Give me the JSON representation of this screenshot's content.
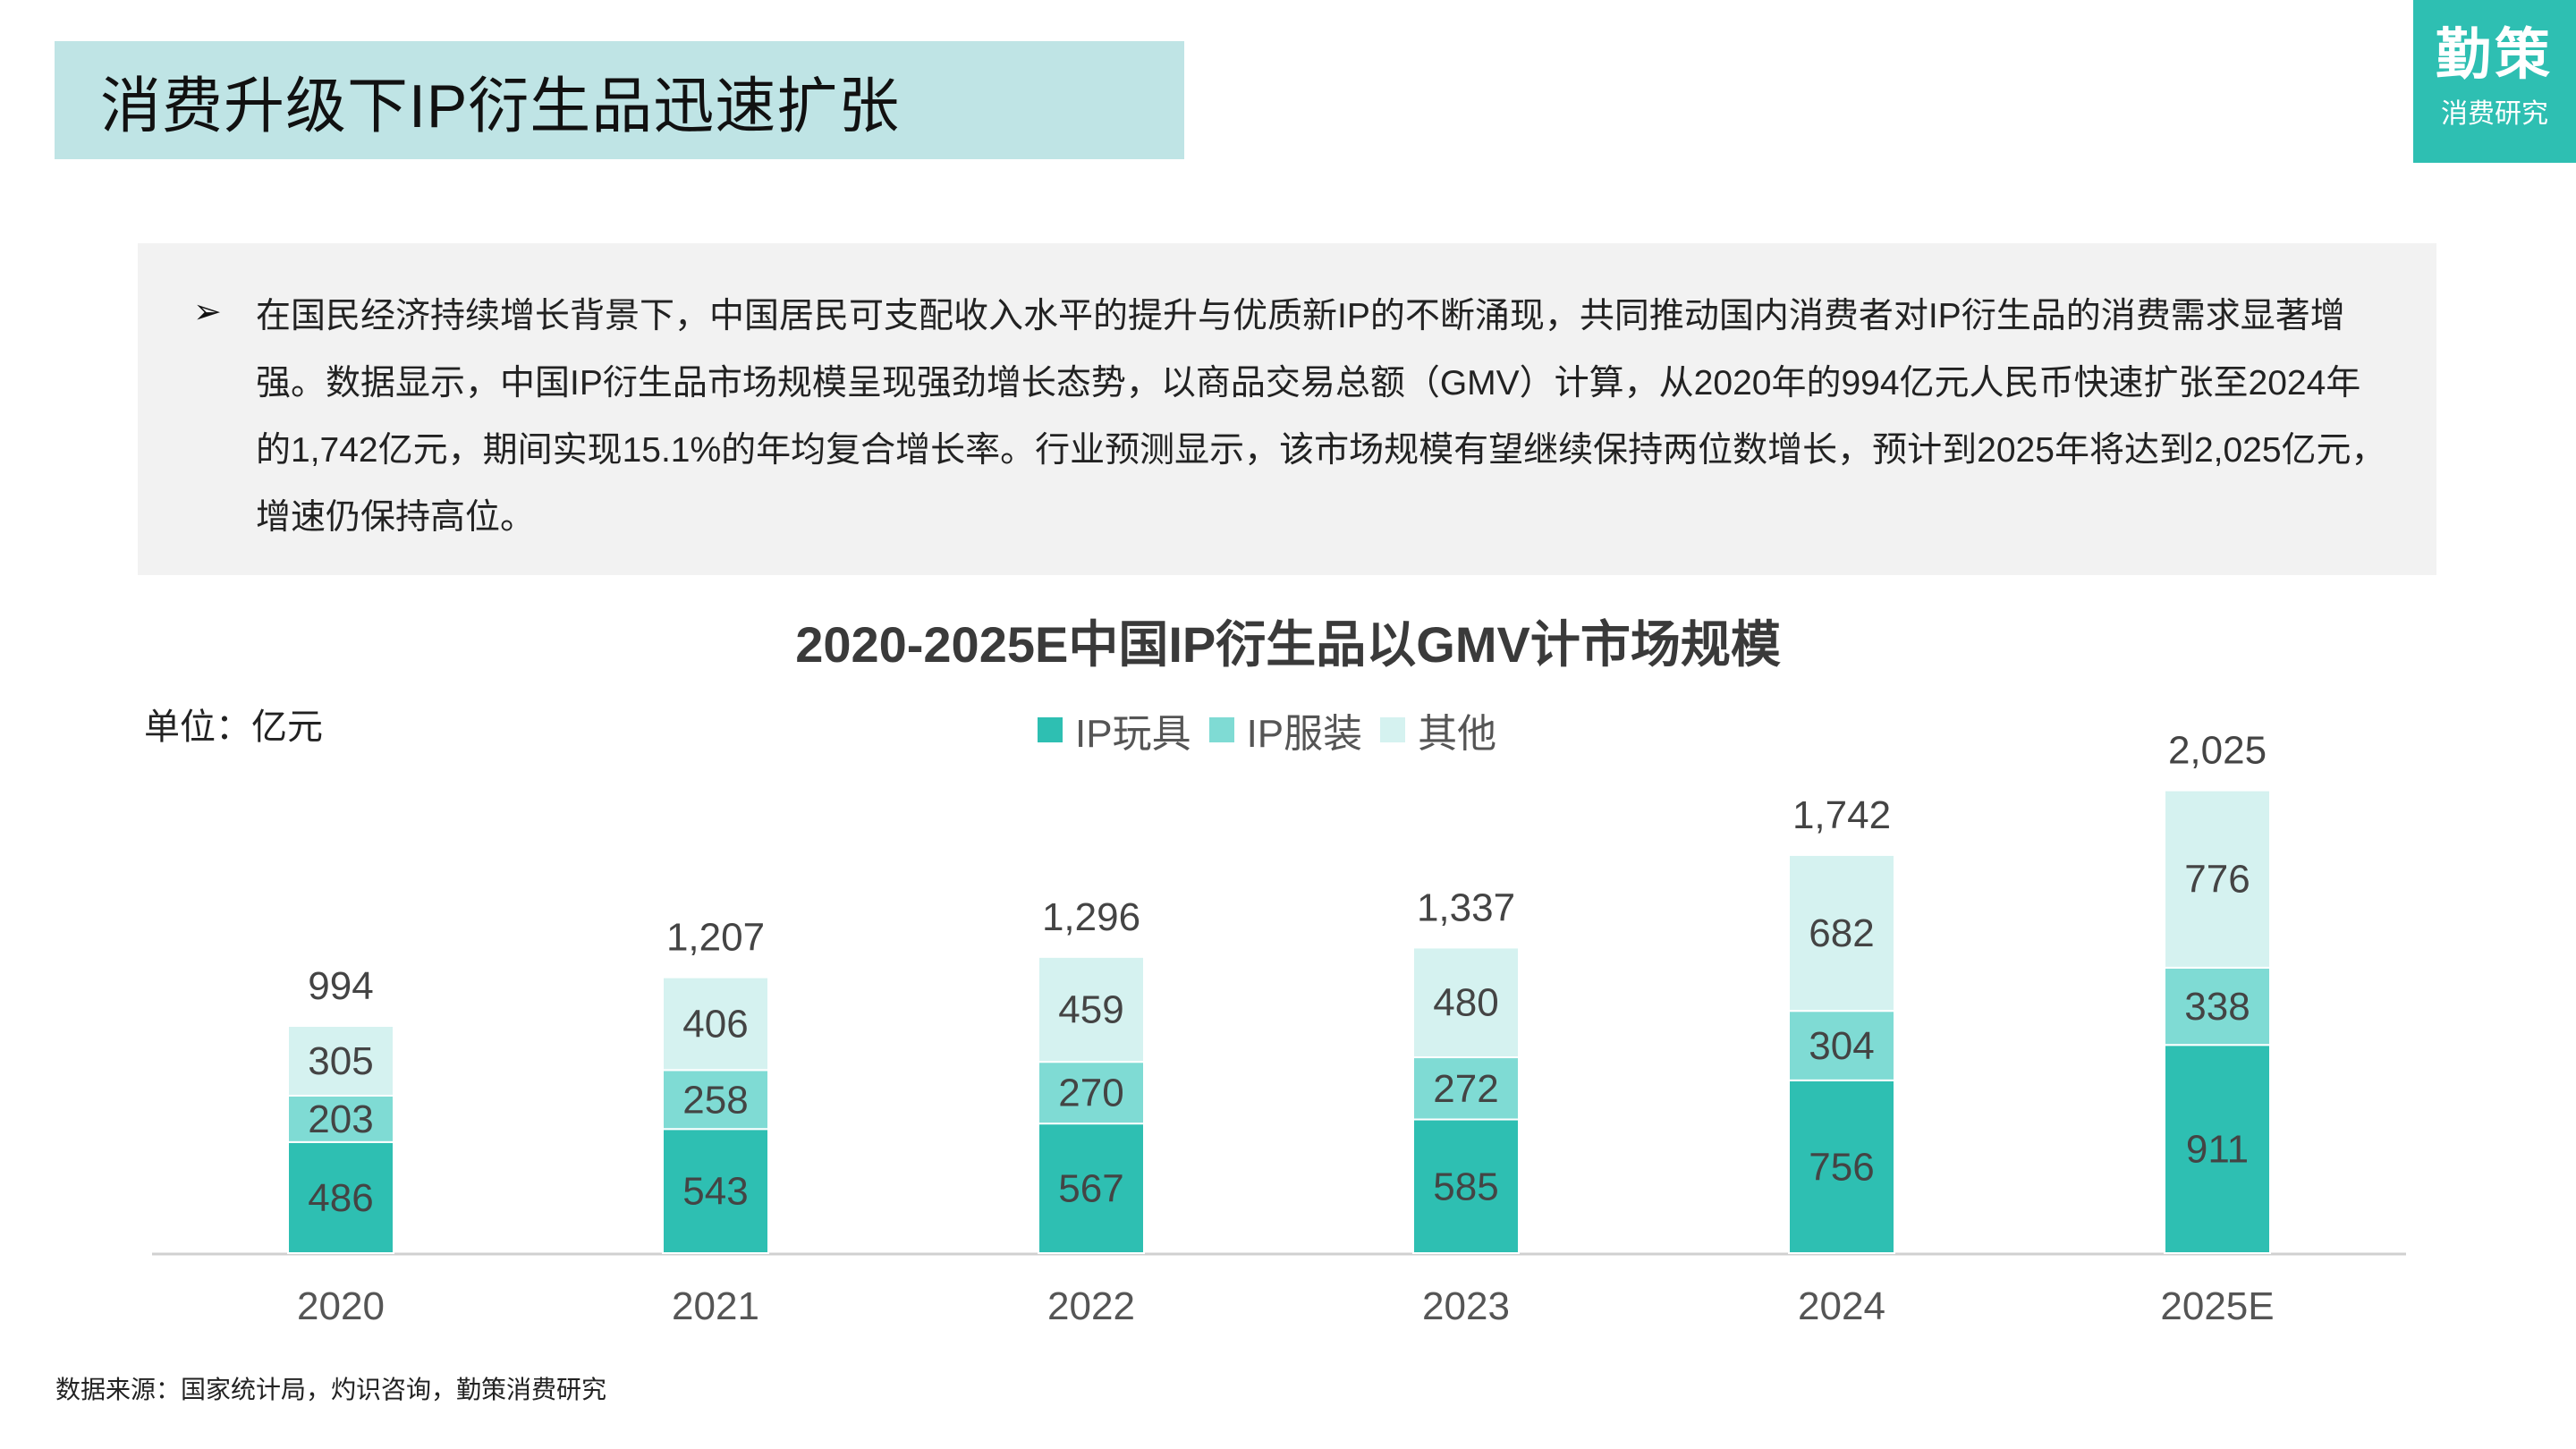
{
  "header": {
    "title": "消费升级下IP衍生品迅速扩张"
  },
  "logo": {
    "main": "勤策",
    "sub": "消费研究"
  },
  "summary": {
    "bullet": "➢",
    "text": "在国民经济持续增长背景下，中国居民可支配收入水平的提升与优质新IP的不断涌现，共同推动国内消费者对IP衍生品的消费需求显著增强。数据显示，中国IP衍生品市场规模呈现强劲增长态势，以商品交易总额（GMV）计算，从2020年的994亿元人民币快速扩张至2024年的1,742亿元，期间实现15.1%的年均复合增长率。行业预测显示，该市场规模有望继续保持两位数增长，预计到2025年将达到2,025亿元，增速仍保持高位。"
  },
  "unit_label": "单位：亿元",
  "source": "数据来源：国家统计局，灼识咨询，勤策消费研究",
  "chart_data": {
    "type": "bar",
    "stacked": true,
    "title": "2020-2025E中国IP衍生品以GMV计市场规模",
    "categories": [
      "2020",
      "2021",
      "2022",
      "2023",
      "2024",
      "2025E"
    ],
    "series": [
      {
        "name": "IP玩具",
        "color": "#2ebfb2",
        "values": [
          486,
          543,
          567,
          585,
          756,
          911
        ],
        "labels": [
          "486",
          "543",
          "567",
          "585",
          "756",
          "911"
        ]
      },
      {
        "name": "IP服装",
        "color": "#7fdbd4",
        "values": [
          203,
          258,
          270,
          272,
          304,
          338
        ],
        "labels": [
          "203",
          "258",
          "270",
          "272",
          "304",
          "338"
        ]
      },
      {
        "name": "其他",
        "color": "#d5f2f0",
        "values": [
          305,
          406,
          459,
          480,
          682,
          776
        ],
        "labels": [
          "305",
          "406",
          "459",
          "480",
          "682",
          "776"
        ]
      }
    ],
    "totals": [
      "994",
      "1,207",
      "1,296",
      "1,337",
      "1,742",
      "2,025"
    ],
    "legend_position": "top",
    "grid": false
  }
}
